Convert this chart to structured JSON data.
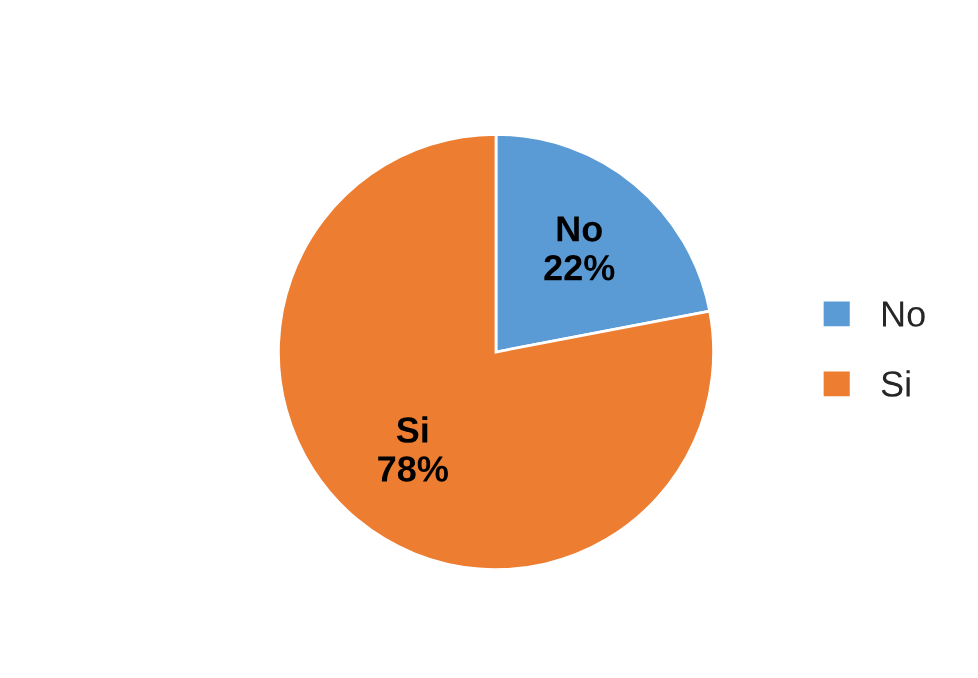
{
  "chart_data": {
    "type": "pie",
    "categories": [
      "No",
      "Si"
    ],
    "values": [
      22,
      78
    ],
    "value_labels": [
      "22%",
      "78%"
    ],
    "colors": [
      "#5b9bd5",
      "#ed7d31"
    ],
    "legend": "right"
  }
}
